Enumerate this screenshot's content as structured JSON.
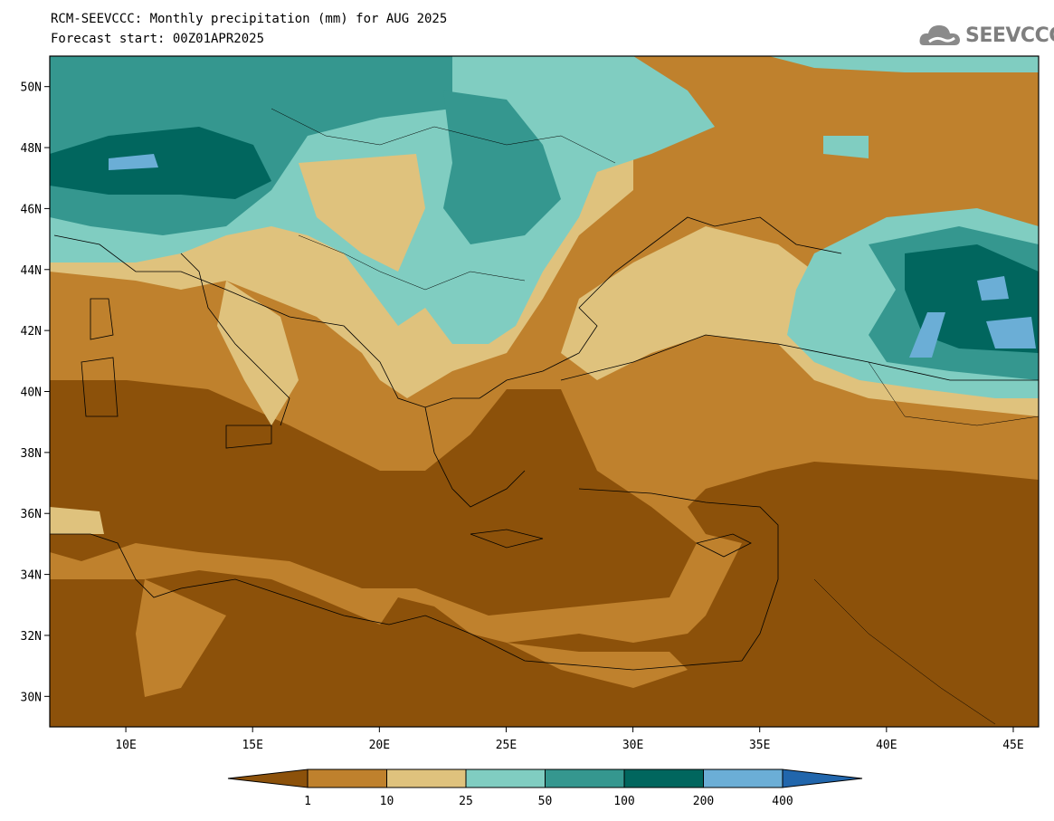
{
  "title": {
    "line1": "RCM-SEEVCCC: Monthly precipitation (mm) for AUG 2025",
    "line2": "Forecast start: 00Z01APR2025"
  },
  "logo": {
    "text": "SEEVCCC",
    "icon": "cloud-icon",
    "color": "#7f7f7f"
  },
  "map": {
    "lon_range": [
      7,
      46
    ],
    "lat_range": [
      29,
      51
    ],
    "lat_labels": [
      "30N",
      "32N",
      "34N",
      "36N",
      "38N",
      "40N",
      "42N",
      "44N",
      "46N",
      "48N",
      "50N"
    ],
    "lon_labels": [
      "10E",
      "15E",
      "20E",
      "25E",
      "30E",
      "35E",
      "40E",
      "45E"
    ]
  },
  "colorbar": {
    "labels": [
      "1",
      "10",
      "25",
      "50",
      "100",
      "200",
      "400"
    ],
    "colors": [
      "#8c510a",
      "#bf812d",
      "#dfc27d",
      "#80cdc1",
      "#35978f",
      "#01665e",
      "#6baed6",
      "#2166ac"
    ]
  }
}
